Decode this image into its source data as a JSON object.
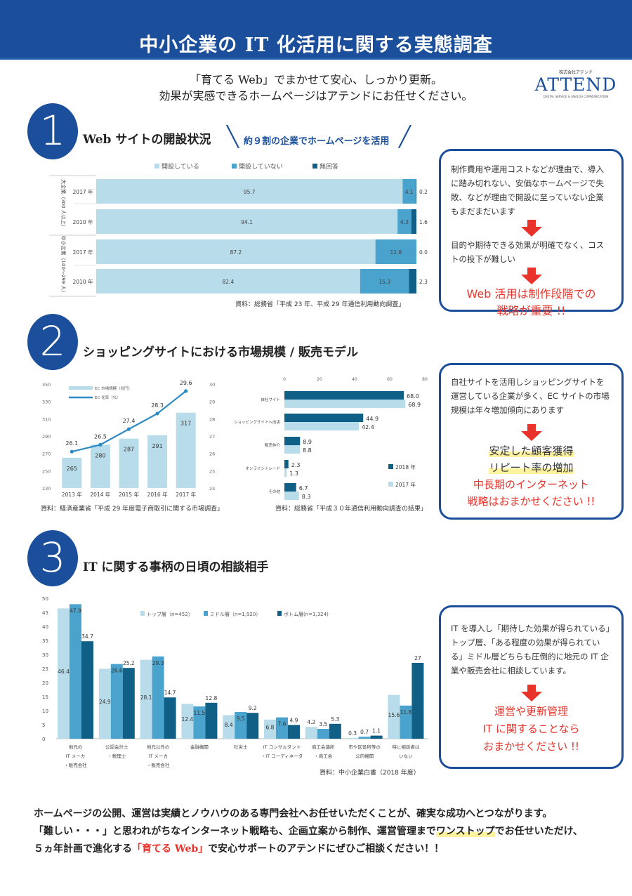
{
  "header": {
    "title": "中小企業の IT 化活用に関する実態調査"
  },
  "tagline": [
    "「育てる Web」でまかせて安心、しっかり更新。",
    "効果が実感できるホームページはアテンドにお任せください。"
  ],
  "logo": {
    "kana": "株式会社アテンド",
    "name": "ATTEND",
    "slogan": "DIGITAL SERVICE & ANALOG COMMUNICATION"
  },
  "colors": {
    "brand": "#1b4f9b",
    "light": "#b9dcea",
    "mid": "#4aa3cc",
    "dark": "#0f5f86",
    "accent_red": "#e8322a"
  },
  "section1": {
    "number": "1",
    "title": "Web サイトの開設状況",
    "subtitle": "約９割の企業でホームページを活用",
    "source": "資料：総務省「平成 23 年、平成 29 年通信利用動向調査」",
    "box": {
      "text1": "制作費用や運用コストなどが理由で、導入に踏み切れない、安価なホームページで失敗、などが理由で開設に至っていない企業もまだまだいます",
      "text2": "目的や期待できる効果が明確でなく、コストの投下が難しい",
      "conclusion1": "Web 活用は制作段階での",
      "conclusion2": "戦略が重要 !!"
    }
  },
  "section2": {
    "number": "2",
    "title": "ショッピングサイトにおける市場規模 / 販売モデル",
    "source_left": "資料：経済産業省「平成 29 年度電子商取引に関する市場調査」",
    "source_right": "資料：総務省「平成３０年通信利用動向調査の結果」",
    "box": {
      "text": "自社サイトを活用しショッピングサイトを運営している企業が多く、EC サイトの市場規模は年々増加傾向にあります",
      "h1": "安定した顧客獲得",
      "h2": "リピート率の増加",
      "conclusion1": "中長期のインターネット",
      "conclusion2": "戦略はおまかせください !!"
    }
  },
  "section3": {
    "number": "3",
    "title": "IT に関する事柄の日頃の相談相手",
    "source": "資料：中小企業白書（2018 年度）",
    "box": {
      "text": "IT を導入し「期待した効果が得られている」トップ層、「ある程度の効果が得られている」ミドル層どちらも圧倒的に地元の IT 企業や販売会社に相談しています。",
      "conclusion1": "運営や更新管理",
      "conclusion2": "IT に関することなら",
      "conclusion3": "おまかせください !!"
    }
  },
  "footer": {
    "line1": "ホームページの公開、運営は実績とノウハウのある専門会社へお任せいただくことが、確実な成功へとつながります。",
    "line2a": "「難しい・・・」と思われがちなインターネット戦略も、企画立案から制作、運営管理まで",
    "line2b": "ワンストップ",
    "line2c": "でお任せいただけ、",
    "line3a": "５ヵ年計画で進化する",
    "line3b": "「育てる Web」",
    "line3c": "で安心サポートのアテンドにぜひご相談ください！！"
  },
  "chart_data": [
    {
      "type": "bar",
      "orientation": "horizontal",
      "stacked": true,
      "xlim": [
        0,
        100
      ],
      "legend": [
        "開設している",
        "開設していない",
        "無回答"
      ],
      "legend_position": "top",
      "groups": [
        {
          "label": "大企業（300 人以上）",
          "rows": [
            "2017 年",
            "2010 年"
          ]
        },
        {
          "label": "中小企業（100～299 人）",
          "rows": [
            "2017 年",
            "2010 年"
          ]
        }
      ],
      "series": [
        {
          "name": "開設している",
          "values": [
            95.7,
            94.1,
            87.2,
            82.4
          ]
        },
        {
          "name": "開設していない",
          "values": [
            4.1,
            4.3,
            12.8,
            15.3
          ]
        },
        {
          "name": "無回答",
          "values": [
            0.2,
            1.6,
            0.0,
            2.3
          ]
        }
      ],
      "labels": {
        "s0": [
          "95.7",
          "94.1",
          "87.2",
          "82.4"
        ],
        "s1": [
          "4.1",
          "4.3",
          "12.8",
          "15.3"
        ],
        "s2": [
          "0.2",
          "1.6",
          "0.0",
          "2.3"
        ]
      }
    },
    {
      "type": "bar+line",
      "categories": [
        "2013 年",
        "2014 年",
        "2015 年",
        "2016 年",
        "2017 年"
      ],
      "series": [
        {
          "name": "EC 市場規模（兆円）",
          "type": "bar",
          "axis": "left",
          "values": [
            265,
            280,
            287,
            291,
            317
          ]
        },
        {
          "name": "EC 化率（%）",
          "type": "line",
          "axis": "right",
          "values": [
            26.1,
            26.5,
            27.4,
            28.3,
            29.6
          ]
        }
      ],
      "ylim_left": [
        230,
        350
      ],
      "yticks_left": [
        "230",
        "250",
        "270",
        "290",
        "310",
        "330",
        "350"
      ],
      "ylim_right": [
        24,
        30
      ],
      "yticks_right": [
        "24",
        "25",
        "26",
        "27",
        "28",
        "29",
        "30"
      ],
      "legend_position": "top-left",
      "bar_labels": [
        "265",
        "280",
        "287",
        "291",
        "317"
      ],
      "line_labels": [
        "26.1",
        "26.5",
        "27.4",
        "28.3",
        "29.6"
      ]
    },
    {
      "type": "bar",
      "orientation": "horizontal",
      "categories": [
        "自社サイト",
        "ショッピングサイトへ出店",
        "販売仲介",
        "オンライントレード",
        "その他"
      ],
      "series": [
        {
          "name": "2018 年",
          "values": [
            68.0,
            44.9,
            8.9,
            2.3,
            6.7
          ]
        },
        {
          "name": "2017 年",
          "values": [
            68.9,
            42.4,
            8.8,
            1.3,
            8.3
          ]
        }
      ],
      "xlim": [
        0,
        80
      ],
      "xticks": [
        "0",
        "20",
        "40",
        "60",
        "80"
      ],
      "legend_position": "bottom-right",
      "labels": {
        "s0": [
          "68.0",
          "44.9",
          "8.9",
          "2.3",
          "6.7"
        ],
        "s1": [
          "68.9",
          "42.4",
          "8.8",
          "1.3",
          "8.3"
        ]
      }
    },
    {
      "type": "bar",
      "categories": [
        [
          "地元の",
          "IT メーカ",
          "・販売会社"
        ],
        [
          "公認会計士",
          "・税理士"
        ],
        [
          "地元以外の",
          "IT メーカ",
          "・販売会社"
        ],
        [
          "金融機関"
        ],
        [
          "社労士"
        ],
        [
          "IT コンサルタント",
          "・IT コーディネータ"
        ],
        [
          "商工会議所",
          "・商工会"
        ],
        [
          "市や区役所等の",
          "公的機関"
        ],
        [
          "特に相談者は",
          "いない"
        ]
      ],
      "series": [
        {
          "name": "トップ層（n=452）",
          "values": [
            46.4,
            24.9,
            28.1,
            12.4,
            8.4,
            6.8,
            4.2,
            0.3,
            15.6
          ]
        },
        {
          "name": "ミドル層（n=1,920）",
          "values": [
            47.9,
            26.6,
            29.3,
            11.5,
            9.5,
            7.6,
            3.5,
            0.7,
            11.8
          ]
        },
        {
          "name": "ボトム層(n=1,324)",
          "values": [
            34.7,
            25.2,
            14.7,
            12.8,
            9.2,
            4.9,
            5.3,
            1.1,
            27
          ]
        }
      ],
      "ylim": [
        0,
        50
      ],
      "yticks": [
        "0",
        "5",
        "10",
        "15",
        "20",
        "25",
        "30",
        "35",
        "40",
        "45",
        "50"
      ],
      "legend_position": "top",
      "labels": {
        "s0": [
          "46.4",
          "24.9",
          "28.1",
          "12.4",
          "8.4",
          "6.8",
          "4.2",
          "0.3",
          "15.6"
        ],
        "s1": [
          "47.9",
          "26.6",
          "29.3",
          "11.5",
          "9.5",
          "7.6",
          "3.5",
          "0.7",
          "11.8"
        ],
        "s2": [
          "34.7",
          "25.2",
          "14.7",
          "12.8",
          "9.2",
          "4.9",
          "5.3",
          "1.1",
          "27"
        ]
      }
    }
  ]
}
